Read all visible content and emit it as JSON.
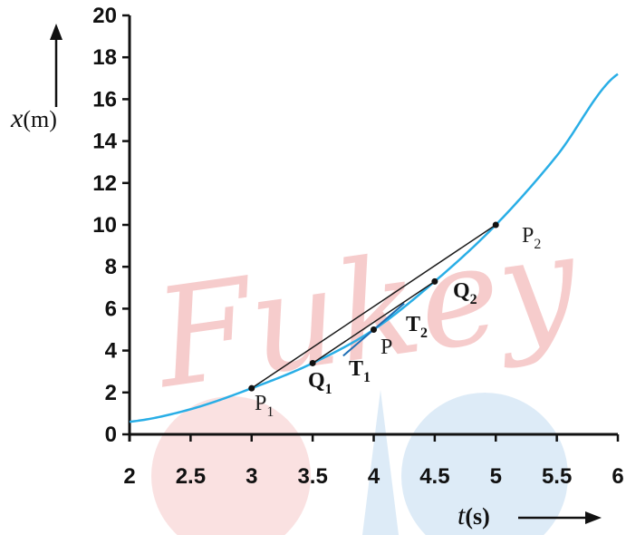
{
  "chart_data": {
    "type": "line",
    "x": [
      2,
      2.5,
      3,
      3.5,
      4,
      4.5,
      5,
      5.5,
      6
    ],
    "series": [
      {
        "values": [
          0.6,
          1.2,
          2.2,
          3.4,
          5.0,
          7.3,
          10.0,
          13.3,
          17.2
        ]
      }
    ],
    "xlabel": "t(s)",
    "ylabel": "x(m)",
    "xlim": [
      2,
      6
    ],
    "ylim": [
      0,
      20
    ],
    "x_ticks": [
      "2",
      "2.5",
      "3",
      "3.5",
      "4",
      "4.5",
      "5",
      "5.5",
      "6"
    ],
    "y_ticks": [
      "0",
      "2",
      "4",
      "6",
      "8",
      "10",
      "12",
      "14",
      "16",
      "18",
      "20"
    ],
    "grid": false,
    "legend": "none",
    "points": [
      {
        "name": "P1",
        "x": 3,
        "y": 2.2
      },
      {
        "name": "Q1",
        "x": 3.5,
        "y": 3.4
      },
      {
        "name": "P",
        "x": 4,
        "y": 5.0
      },
      {
        "name": "Q2",
        "x": 4.5,
        "y": 7.3
      },
      {
        "name": "P2",
        "x": 5,
        "y": 10.0
      }
    ],
    "annotations": {
      "P1": {
        "main": "P",
        "sub": "1"
      },
      "P2": {
        "main": "P",
        "sub": "2"
      },
      "Q1": {
        "main": "Q",
        "sub": "1"
      },
      "Q2": {
        "main": "Q",
        "sub": "2"
      },
      "P": {
        "main": "P"
      },
      "T1": {
        "main": "T",
        "sub": "1"
      },
      "T2": {
        "main": "T",
        "sub": "2"
      }
    },
    "tangent_segment": {
      "from": [
        3.75,
        3.75
      ],
      "to": [
        4.25,
        6.25
      ]
    },
    "colors": {
      "curve": "#29aee6",
      "chord": "#1a1a1a",
      "axis": "#111111"
    }
  },
  "watermark": {
    "text": "Fukey",
    "color": "#f4bcbc",
    "circle_color": "#cfe3f4"
  }
}
